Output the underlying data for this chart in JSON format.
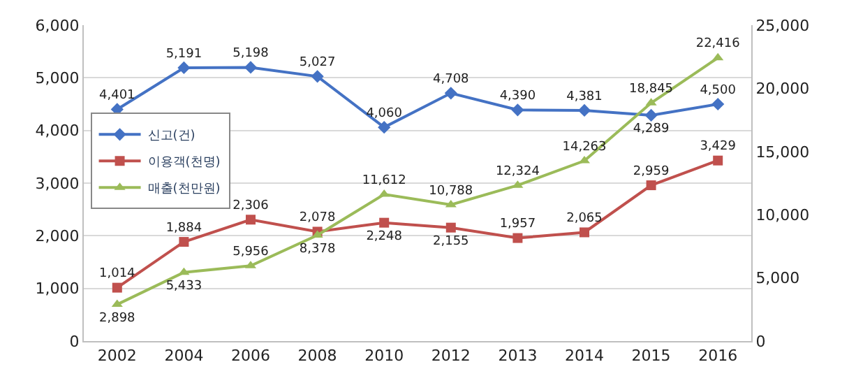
{
  "chart_data": {
    "type": "line",
    "categories": [
      "2002",
      "2004",
      "2006",
      "2008",
      "2010",
      "2012",
      "2013",
      "2014",
      "2015",
      "2016"
    ],
    "series": [
      {
        "name": "신고(건)",
        "color": "#4472c4",
        "marker": "diamond",
        "values": [
          4401,
          5191,
          5198,
          5027,
          4060,
          4708,
          4390,
          4381,
          4289,
          4500
        ],
        "value_labels": [
          "4,401",
          "5,191",
          "5,198",
          "5,027",
          "4,060",
          "4,708",
          "4,390",
          "4,381",
          "4,289",
          "4,500"
        ]
      },
      {
        "name": "이용객(천명)",
        "color": "#c0504d",
        "marker": "square",
        "values": [
          1014,
          1884,
          2306,
          2078,
          2248,
          2155,
          1957,
          2065,
          2959,
          3429
        ],
        "value_labels": [
          "1,014",
          "1,884",
          "2,306",
          "2,078",
          "2,248",
          "2,155",
          "1,957",
          "2,065",
          "2,959",
          "3,429"
        ]
      },
      {
        "name": "매출(천만원)",
        "color": "#9bbb59",
        "marker": "triangle",
        "axis": "y2",
        "values": [
          2898,
          5433,
          5956,
          8378,
          11612,
          10788,
          12324,
          14263,
          18845,
          22416
        ],
        "value_labels": [
          "2,898",
          "5,433",
          "5,956",
          "8,378",
          "11,612",
          "10,788",
          "12,324",
          "14,263",
          "18,845",
          "22,416"
        ]
      }
    ],
    "ylim": [
      0,
      6000
    ],
    "yticks": [
      {
        "value": 0,
        "label": "0"
      },
      {
        "value": 1000,
        "label": "1,000"
      },
      {
        "value": 2000,
        "label": "2,000"
      },
      {
        "value": 3000,
        "label": "3,000"
      },
      {
        "value": 4000,
        "label": "4,000"
      },
      {
        "value": 5000,
        "label": "5,000"
      },
      {
        "value": 6000,
        "label": "6,000"
      }
    ],
    "y2lim": [
      0,
      25000
    ],
    "y2ticks": [
      {
        "value": 0,
        "label": "0"
      },
      {
        "value": 5000,
        "label": "5,000"
      },
      {
        "value": 10000,
        "label": "10,000"
      },
      {
        "value": 15000,
        "label": "15,000"
      },
      {
        "value": 20000,
        "label": "20,000"
      },
      {
        "value": 25000,
        "label": "25,000"
      }
    ],
    "grid": "y",
    "legend": "left"
  }
}
